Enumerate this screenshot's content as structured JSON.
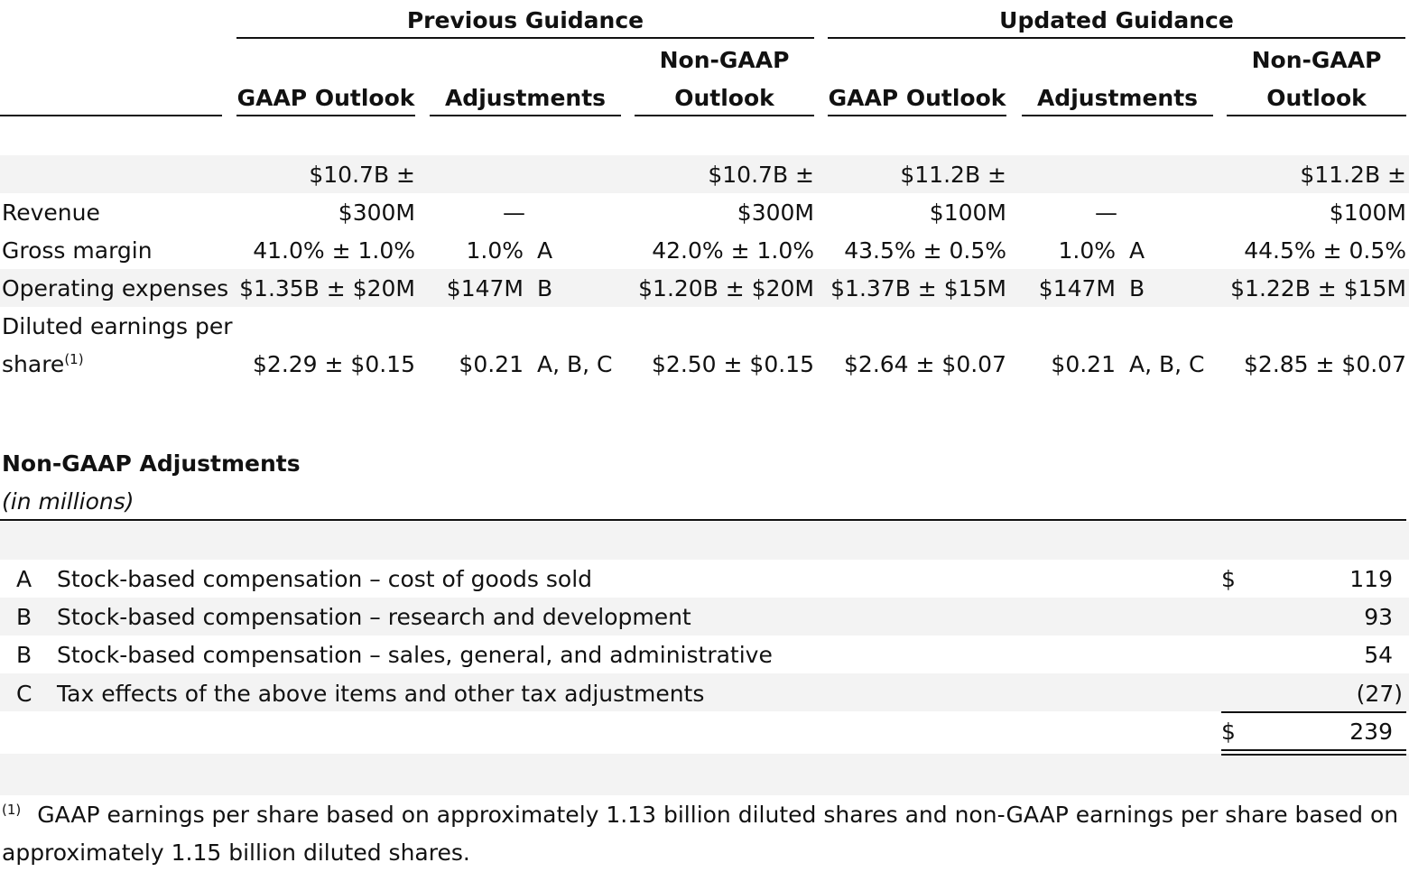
{
  "header": {
    "previous_guidance": "Previous Guidance",
    "updated_guidance": "Updated Guidance",
    "col_gaap_outlook": "GAAP Outlook",
    "col_adjustments": "Adjustments",
    "col_nongaap_line1": "Non-GAAP",
    "col_nongaap_line2": "Outlook"
  },
  "rows": {
    "revenue": {
      "label": "Revenue",
      "prev_gaap_l1": "$10.7B ±",
      "prev_gaap_l2": "$300M",
      "prev_adj": "—",
      "prev_ng_l1": "$10.7B ±",
      "prev_ng_l2": "$300M",
      "upd_gaap_l1": "$11.2B ±",
      "upd_gaap_l2": "$100M",
      "upd_adj": "—",
      "upd_ng_l1": "$11.2B ±",
      "upd_ng_l2": "$100M"
    },
    "gross_margin": {
      "label": "Gross margin",
      "prev_gaap": "41.0% ± 1.0%",
      "prev_adj": "1.0%",
      "prev_ref": "A",
      "prev_ng": "42.0% ± 1.0%",
      "upd_gaap": "43.5% ± 0.5%",
      "upd_adj": "1.0%",
      "upd_ref": "A",
      "upd_ng": "44.5% ± 0.5%"
    },
    "opex": {
      "label": "Operating expenses",
      "prev_gaap": "$1.35B ± $20M",
      "prev_adj": "$147M",
      "prev_ref": "B",
      "prev_ng": "$1.20B ± $20M",
      "upd_gaap": "$1.37B ± $15M",
      "upd_adj": "$147M",
      "upd_ref": "B",
      "upd_ng": "$1.22B ± $15M"
    },
    "eps": {
      "label_l1": "Diluted earnings per",
      "label_l2": "share",
      "footnote_mark": "(1)",
      "prev_gaap": "$2.29 ± $0.15",
      "prev_adj": "$0.21",
      "prev_ref": "A, B, C",
      "prev_ng": "$2.50 ± $0.15",
      "upd_gaap": "$2.64 ± $0.07",
      "upd_adj": "$0.21",
      "upd_ref": "A, B, C",
      "upd_ng": "$2.85 ± $0.07"
    }
  },
  "adjustments": {
    "title": "Non-GAAP Adjustments",
    "subtitle": "(in millions)",
    "items": [
      {
        "code": "A",
        "desc": "Stock-based compensation – cost of goods sold",
        "currency": "$",
        "amount": "119"
      },
      {
        "code": "B",
        "desc": "Stock-based compensation – research and development",
        "currency": "",
        "amount": "93"
      },
      {
        "code": "B",
        "desc": "Stock-based compensation – sales, general, and administrative",
        "currency": "",
        "amount": "54"
      },
      {
        "code": "C",
        "desc": "Tax effects of the above items and other tax adjustments",
        "currency": "",
        "amount": "(27)"
      }
    ],
    "total_currency": "$",
    "total_amount": "239"
  },
  "footnote": {
    "mark": "(1)",
    "line1": "GAAP earnings per share based on approximately 1.13 billion diluted shares and non-GAAP earnings per share based on",
    "line2": "approximately 1.15 billion diluted shares."
  }
}
